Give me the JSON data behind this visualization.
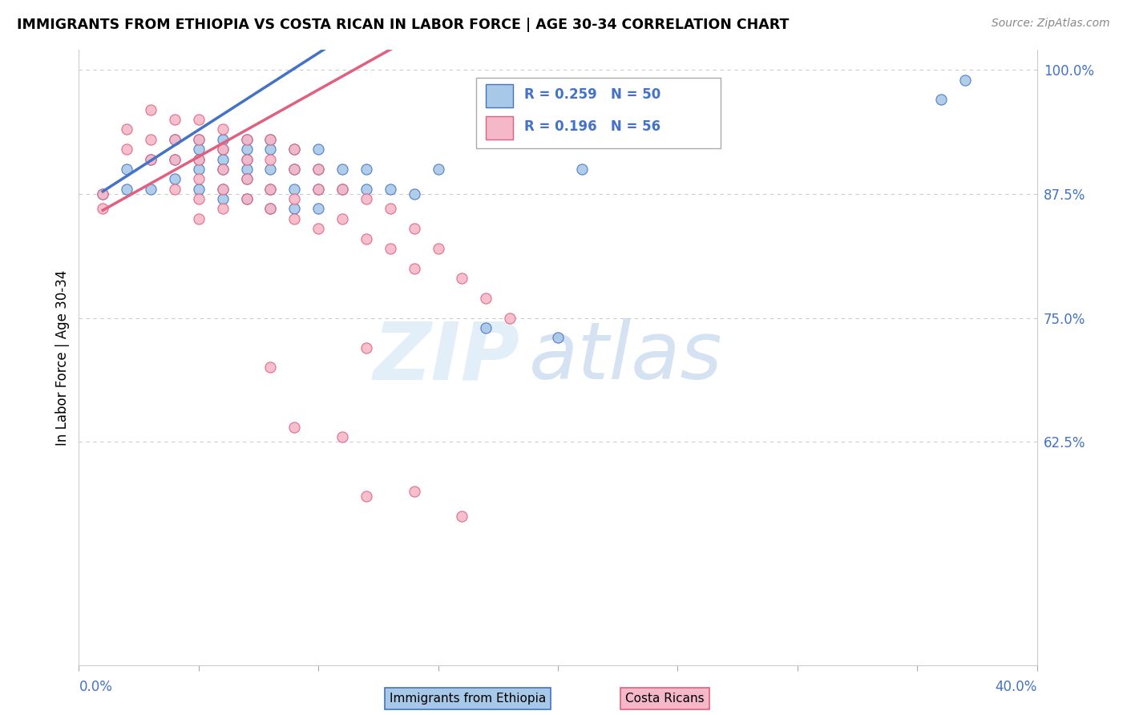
{
  "title": "IMMIGRANTS FROM ETHIOPIA VS COSTA RICAN IN LABOR FORCE | AGE 30-34 CORRELATION CHART",
  "source": "Source: ZipAtlas.com",
  "ylabel_label": "In Labor Force | Age 30-34",
  "legend_r1": "R = 0.259",
  "legend_n1": "N = 50",
  "legend_r2": "R = 0.196",
  "legend_n2": "N = 56",
  "legend_label1": "Immigrants from Ethiopia",
  "legend_label2": "Costa Ricans",
  "watermark_zip": "ZIP",
  "watermark_atlas": "atlas",
  "blue_color": "#a8c8e8",
  "pink_color": "#f4b8c8",
  "blue_line_color": "#4472c4",
  "pink_line_color": "#e06080",
  "blue_scatter_x": [
    0.01,
    0.02,
    0.02,
    0.03,
    0.03,
    0.04,
    0.04,
    0.04,
    0.05,
    0.05,
    0.05,
    0.05,
    0.05,
    0.06,
    0.06,
    0.06,
    0.06,
    0.06,
    0.06,
    0.07,
    0.07,
    0.07,
    0.07,
    0.07,
    0.07,
    0.08,
    0.08,
    0.08,
    0.08,
    0.08,
    0.09,
    0.09,
    0.09,
    0.09,
    0.1,
    0.1,
    0.1,
    0.1,
    0.11,
    0.11,
    0.12,
    0.12,
    0.13,
    0.14,
    0.15,
    0.17,
    0.2,
    0.21,
    0.36,
    0.37
  ],
  "blue_scatter_y": [
    0.875,
    0.9,
    0.88,
    0.91,
    0.88,
    0.93,
    0.91,
    0.89,
    0.93,
    0.92,
    0.91,
    0.9,
    0.88,
    0.93,
    0.92,
    0.91,
    0.9,
    0.88,
    0.87,
    0.93,
    0.92,
    0.91,
    0.9,
    0.89,
    0.87,
    0.93,
    0.92,
    0.9,
    0.88,
    0.86,
    0.92,
    0.9,
    0.88,
    0.86,
    0.92,
    0.9,
    0.88,
    0.86,
    0.9,
    0.88,
    0.9,
    0.88,
    0.88,
    0.875,
    0.9,
    0.74,
    0.73,
    0.9,
    0.97,
    0.99
  ],
  "pink_scatter_x": [
    0.01,
    0.01,
    0.02,
    0.02,
    0.03,
    0.03,
    0.03,
    0.04,
    0.04,
    0.04,
    0.04,
    0.05,
    0.05,
    0.05,
    0.05,
    0.05,
    0.05,
    0.06,
    0.06,
    0.06,
    0.06,
    0.06,
    0.07,
    0.07,
    0.07,
    0.07,
    0.08,
    0.08,
    0.08,
    0.08,
    0.09,
    0.09,
    0.09,
    0.09,
    0.1,
    0.1,
    0.1,
    0.11,
    0.11,
    0.12,
    0.12,
    0.13,
    0.13,
    0.14,
    0.14,
    0.15,
    0.16,
    0.17,
    0.18,
    0.12,
    0.08,
    0.09,
    0.11,
    0.12,
    0.14,
    0.16
  ],
  "pink_scatter_y": [
    0.875,
    0.86,
    0.94,
    0.92,
    0.96,
    0.93,
    0.91,
    0.95,
    0.93,
    0.91,
    0.88,
    0.95,
    0.93,
    0.91,
    0.89,
    0.87,
    0.85,
    0.94,
    0.92,
    0.9,
    0.88,
    0.86,
    0.93,
    0.91,
    0.89,
    0.87,
    0.93,
    0.91,
    0.88,
    0.86,
    0.92,
    0.9,
    0.87,
    0.85,
    0.9,
    0.88,
    0.84,
    0.88,
    0.85,
    0.87,
    0.83,
    0.86,
    0.82,
    0.84,
    0.8,
    0.82,
    0.79,
    0.77,
    0.75,
    0.72,
    0.7,
    0.64,
    0.63,
    0.57,
    0.575,
    0.55
  ],
  "xlim": [
    0.0,
    0.4
  ],
  "ylim": [
    0.4,
    1.02
  ],
  "yticks": [
    1.0,
    0.875,
    0.75,
    0.625
  ],
  "ytick_labels": [
    "100.0%",
    "87.5%",
    "75.0%",
    "62.5%"
  ],
  "blue_trend_slope": 1.55,
  "blue_trend_intercept": 0.862,
  "pink_trend_slope": 1.35,
  "pink_trend_intercept": 0.845
}
